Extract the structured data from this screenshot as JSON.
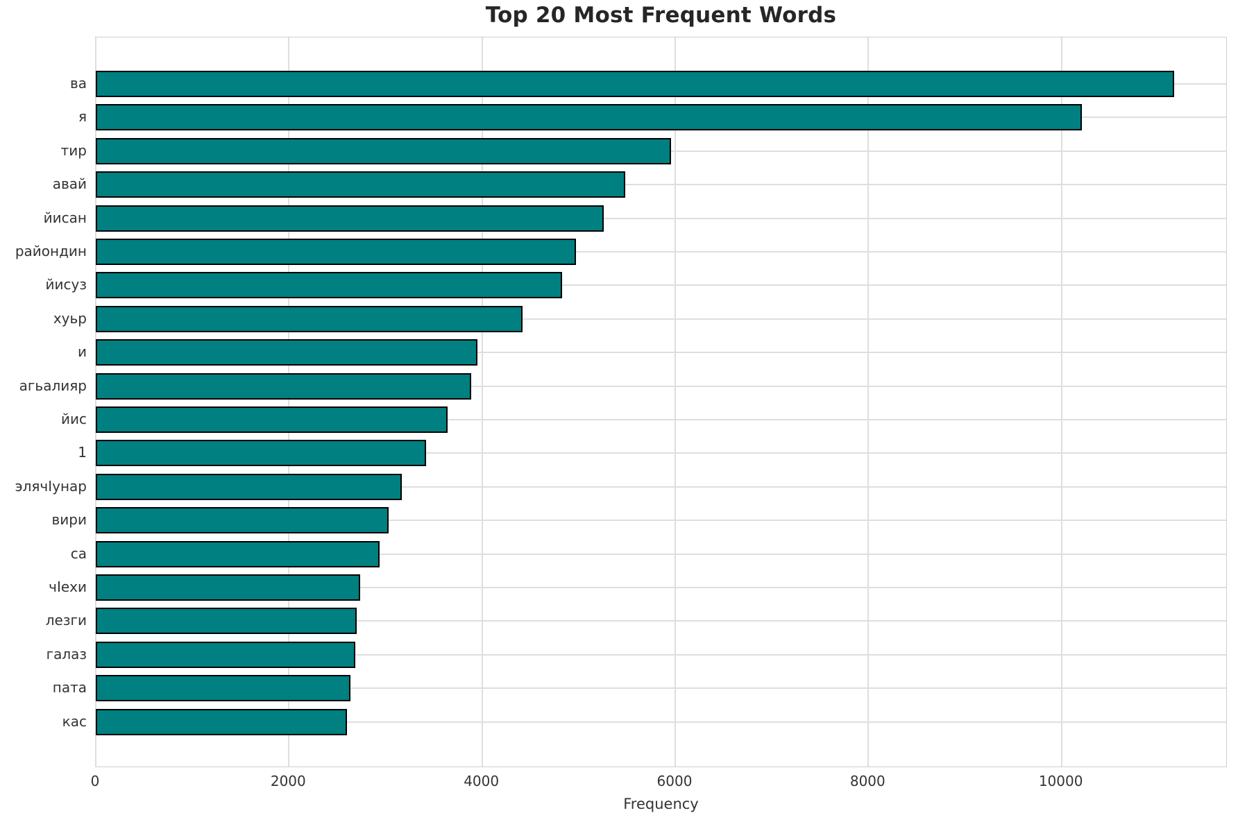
{
  "chart_data": {
    "type": "bar",
    "orientation": "horizontal",
    "title": "Top 20 Most Frequent Words",
    "xlabel": "Frequency",
    "ylabel": "",
    "categories": [
      "ва",
      "я",
      "тир",
      "авай",
      "йисан",
      "райондин",
      "йисуз",
      "хуьр",
      "и",
      "агьалияр",
      "йис",
      "1",
      "элячӀунар",
      "вири",
      "са",
      "чӀехи",
      "лезги",
      "галаз",
      "пата",
      "кас"
    ],
    "values": [
      11170,
      10210,
      5960,
      5480,
      5260,
      4970,
      4830,
      4420,
      3950,
      3890,
      3640,
      3420,
      3170,
      3030,
      2940,
      2740,
      2700,
      2690,
      2640,
      2600
    ],
    "x_ticks": [
      0,
      2000,
      4000,
      6000,
      8000,
      10000
    ],
    "xlim": [
      0,
      11720
    ],
    "grid": true,
    "legend": false,
    "colors": {
      "bar_fill": "#008080",
      "bar_edge": "#000000",
      "gridline": "#dedede",
      "frame": "#cfcfcf",
      "title_text": "#262626",
      "tick_text": "#333333"
    }
  }
}
